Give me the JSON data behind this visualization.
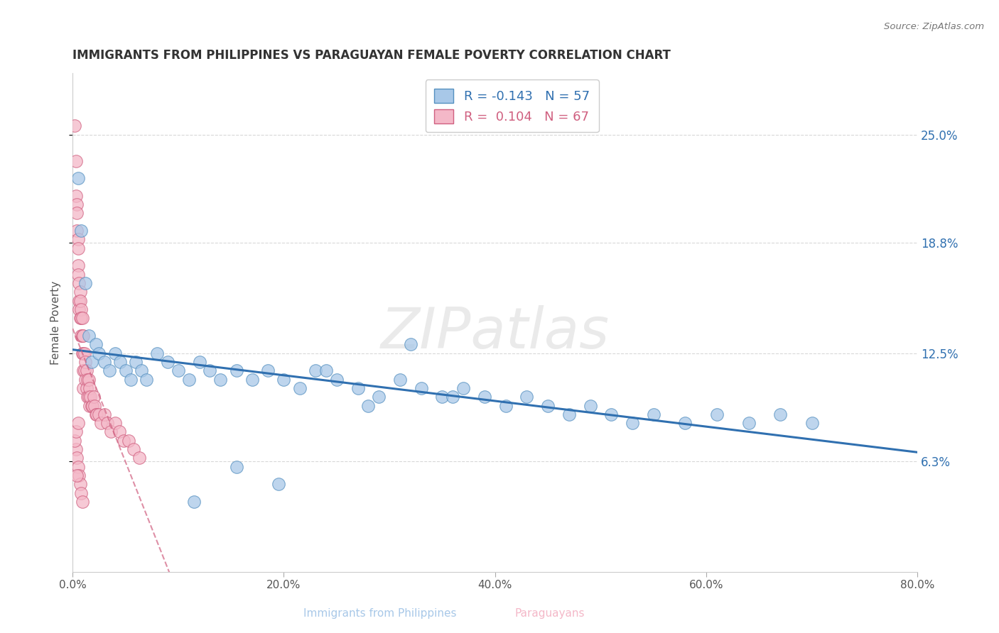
{
  "title": "IMMIGRANTS FROM PHILIPPINES VS PARAGUAYAN FEMALE POVERTY CORRELATION CHART",
  "source_text": "Source: ZipAtlas.com",
  "xlabel_blue": "Immigrants from Philippines",
  "xlabel_pink": "Paraguayans",
  "ylabel": "Female Poverty",
  "watermark": "ZIPatlas",
  "legend_blue_r": "R = -0.143",
  "legend_blue_n": "N = 57",
  "legend_pink_r": "R =  0.104",
  "legend_pink_n": "N = 67",
  "xlim": [
    0.0,
    0.8
  ],
  "ylim": [
    0.0,
    0.285
  ],
  "yticks": [
    0.063,
    0.125,
    0.188,
    0.25
  ],
  "ytick_labels": [
    "6.3%",
    "12.5%",
    "18.8%",
    "25.0%"
  ],
  "xticks": [
    0.0,
    0.2,
    0.4,
    0.6,
    0.8
  ],
  "xtick_labels": [
    "0.0%",
    "20.0%",
    "40.0%",
    "60.0%",
    "80.0%"
  ],
  "color_blue": "#a8c8e8",
  "color_pink": "#f4b8c8",
  "edge_blue": "#5590c0",
  "edge_pink": "#d06080",
  "line_blue": "#3070b0",
  "line_pink": "#d06080",
  "blue_scatter_x": [
    0.005,
    0.008,
    0.012,
    0.015,
    0.018,
    0.022,
    0.025,
    0.03,
    0.035,
    0.04,
    0.045,
    0.05,
    0.055,
    0.06,
    0.065,
    0.07,
    0.08,
    0.09,
    0.1,
    0.11,
    0.12,
    0.13,
    0.14,
    0.155,
    0.17,
    0.185,
    0.2,
    0.215,
    0.23,
    0.25,
    0.27,
    0.29,
    0.31,
    0.33,
    0.35,
    0.37,
    0.39,
    0.41,
    0.43,
    0.45,
    0.47,
    0.49,
    0.51,
    0.53,
    0.55,
    0.58,
    0.61,
    0.64,
    0.67,
    0.7,
    0.32,
    0.36,
    0.28,
    0.24,
    0.195,
    0.155,
    0.115
  ],
  "blue_scatter_y": [
    0.225,
    0.195,
    0.165,
    0.135,
    0.12,
    0.13,
    0.125,
    0.12,
    0.115,
    0.125,
    0.12,
    0.115,
    0.11,
    0.12,
    0.115,
    0.11,
    0.125,
    0.12,
    0.115,
    0.11,
    0.12,
    0.115,
    0.11,
    0.115,
    0.11,
    0.115,
    0.11,
    0.105,
    0.115,
    0.11,
    0.105,
    0.1,
    0.11,
    0.105,
    0.1,
    0.105,
    0.1,
    0.095,
    0.1,
    0.095,
    0.09,
    0.095,
    0.09,
    0.085,
    0.09,
    0.085,
    0.09,
    0.085,
    0.09,
    0.085,
    0.13,
    0.1,
    0.095,
    0.115,
    0.05,
    0.06,
    0.04
  ],
  "pink_scatter_x": [
    0.002,
    0.003,
    0.003,
    0.004,
    0.004,
    0.004,
    0.005,
    0.005,
    0.005,
    0.005,
    0.006,
    0.006,
    0.006,
    0.007,
    0.007,
    0.007,
    0.008,
    0.008,
    0.008,
    0.009,
    0.009,
    0.009,
    0.01,
    0.01,
    0.01,
    0.01,
    0.011,
    0.011,
    0.012,
    0.012,
    0.013,
    0.013,
    0.014,
    0.014,
    0.015,
    0.015,
    0.016,
    0.016,
    0.017,
    0.018,
    0.019,
    0.02,
    0.021,
    0.022,
    0.023,
    0.025,
    0.027,
    0.03,
    0.033,
    0.036,
    0.04,
    0.044,
    0.048,
    0.053,
    0.058,
    0.063,
    0.003,
    0.004,
    0.005,
    0.006,
    0.007,
    0.008,
    0.009,
    0.002,
    0.003,
    0.005,
    0.004
  ],
  "pink_scatter_y": [
    0.255,
    0.235,
    0.215,
    0.21,
    0.205,
    0.195,
    0.19,
    0.185,
    0.175,
    0.17,
    0.165,
    0.155,
    0.15,
    0.16,
    0.155,
    0.145,
    0.15,
    0.145,
    0.135,
    0.145,
    0.135,
    0.125,
    0.135,
    0.125,
    0.115,
    0.105,
    0.125,
    0.115,
    0.12,
    0.11,
    0.115,
    0.105,
    0.11,
    0.1,
    0.11,
    0.1,
    0.105,
    0.095,
    0.1,
    0.095,
    0.095,
    0.1,
    0.095,
    0.09,
    0.09,
    0.09,
    0.085,
    0.09,
    0.085,
    0.08,
    0.085,
    0.08,
    0.075,
    0.075,
    0.07,
    0.065,
    0.07,
    0.065,
    0.06,
    0.055,
    0.05,
    0.045,
    0.04,
    0.075,
    0.08,
    0.085,
    0.055
  ],
  "bg_color": "#ffffff",
  "grid_color": "#d8d8d8"
}
